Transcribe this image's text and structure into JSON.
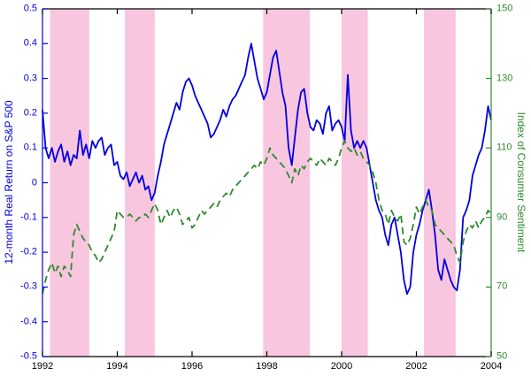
{
  "chart_data": {
    "type": "line",
    "title": "",
    "xlabel": "",
    "ylabel_left": "12-month Real Return on S&P 500",
    "ylabel_right": "Index of Consumer Sentiment",
    "x_range": [
      1992,
      2004
    ],
    "x_ticks": [
      1992,
      1994,
      1996,
      1998,
      2000,
      2002,
      2004
    ],
    "x_tick_labels": [
      "1992",
      "1994",
      "1996",
      "1998",
      "2000",
      "2002",
      "2004"
    ],
    "y_left_range": [
      -0.5,
      0.5
    ],
    "y_left_ticks": [
      0.5,
      0.4,
      0.3,
      0.2,
      0.1,
      0,
      -0.1,
      -0.2,
      -0.3,
      -0.4,
      -0.5
    ],
    "y_left_tick_labels": [
      "0.5",
      "0.4",
      "0.3",
      "0.2",
      "0.1",
      "0",
      "-0.1",
      "-0.2",
      "-0.3",
      "-0.4",
      "-0.5"
    ],
    "y_right_range": [
      50,
      150
    ],
    "y_right_ticks": [
      150,
      130,
      110,
      90,
      70,
      50
    ],
    "y_right_tick_labels": [
      "150",
      "130",
      "110",
      "90",
      "70",
      "50"
    ],
    "grid": false,
    "legend": "none",
    "band_color": "#f9c6e0",
    "shaded_bands": [
      [
        1992.2,
        1993.25
      ],
      [
        1994.2,
        1995.0
      ],
      [
        1997.9,
        1999.15
      ],
      [
        2000.0,
        2000.7
      ],
      [
        2002.2,
        2003.05
      ]
    ],
    "series": [
      {
        "name": "12-month Real Return on S&P 500",
        "axis": "left",
        "color": "#0000e0",
        "style": "solid",
        "x0": 1992,
        "dx": 0.0833333,
        "values": [
          0.21,
          0.1,
          0.07,
          0.1,
          0.06,
          0.09,
          0.11,
          0.06,
          0.09,
          0.05,
          0.08,
          0.07,
          0.15,
          0.08,
          0.11,
          0.07,
          0.12,
          0.1,
          0.12,
          0.13,
          0.08,
          0.1,
          0.11,
          0.05,
          0.06,
          0.02,
          0.01,
          0.03,
          -0.01,
          0.01,
          0.03,
          0.0,
          0.02,
          -0.02,
          -0.01,
          -0.05,
          -0.03,
          0.02,
          0.06,
          0.11,
          0.14,
          0.17,
          0.2,
          0.23,
          0.21,
          0.26,
          0.29,
          0.3,
          0.28,
          0.25,
          0.23,
          0.21,
          0.19,
          0.17,
          0.13,
          0.14,
          0.16,
          0.18,
          0.21,
          0.19,
          0.22,
          0.24,
          0.25,
          0.27,
          0.29,
          0.31,
          0.36,
          0.4,
          0.35,
          0.3,
          0.27,
          0.24,
          0.26,
          0.31,
          0.36,
          0.38,
          0.32,
          0.26,
          0.22,
          0.1,
          0.05,
          0.13,
          0.21,
          0.26,
          0.27,
          0.2,
          0.16,
          0.15,
          0.18,
          0.17,
          0.14,
          0.2,
          0.22,
          0.15,
          0.17,
          0.18,
          0.16,
          0.12,
          0.31,
          0.15,
          0.1,
          0.12,
          0.1,
          0.12,
          0.1,
          0.05,
          0.0,
          -0.05,
          -0.08,
          -0.1,
          -0.15,
          -0.18,
          -0.12,
          -0.1,
          -0.15,
          -0.2,
          -0.28,
          -0.32,
          -0.3,
          -0.2,
          -0.15,
          -0.12,
          -0.08,
          -0.05,
          -0.02,
          -0.08,
          -0.15,
          -0.25,
          -0.28,
          -0.22,
          -0.25,
          -0.28,
          -0.3,
          -0.31,
          -0.25,
          -0.1,
          -0.08,
          -0.05,
          0.02,
          0.05,
          0.08,
          0.1,
          0.15,
          0.22,
          0.18
        ]
      },
      {
        "name": "Index of Consumer Sentiment",
        "axis": "right",
        "color": "#2e8b2e",
        "style": "dashed",
        "x0": 1992,
        "dx": 0.0833333,
        "values": [
          68,
          72,
          75,
          77,
          74,
          76,
          73,
          76,
          75,
          73,
          85,
          88,
          86,
          84,
          83,
          82,
          80,
          79,
          77,
          78,
          80,
          82,
          84,
          86,
          92,
          91,
          90,
          90,
          91,
          90,
          89,
          90,
          90,
          91,
          90,
          92,
          94,
          92,
          88,
          90,
          92,
          90,
          92,
          93,
          91,
          88,
          89,
          90,
          87,
          88,
          90,
          92,
          91,
          92,
          93,
          94,
          93,
          95,
          96,
          97,
          96,
          98,
          99,
          100,
          101,
          102,
          103,
          104,
          105,
          104,
          106,
          105,
          107,
          110,
          108,
          107,
          106,
          105,
          104,
          102,
          100,
          104,
          102,
          105,
          104,
          106,
          107,
          106,
          105,
          107,
          106,
          105,
          107,
          106,
          105,
          107,
          110,
          112,
          110,
          109,
          110,
          108,
          109,
          107,
          106,
          105,
          103,
          100,
          95,
          92,
          91,
          88,
          92,
          90,
          89,
          91,
          83,
          82,
          84,
          88,
          93,
          91,
          93,
          95,
          93,
          92,
          88,
          87,
          86,
          85,
          84,
          83,
          82,
          79,
          77,
          83,
          86,
          88,
          87,
          89,
          87,
          89,
          90,
          92,
          91
        ]
      }
    ]
  }
}
